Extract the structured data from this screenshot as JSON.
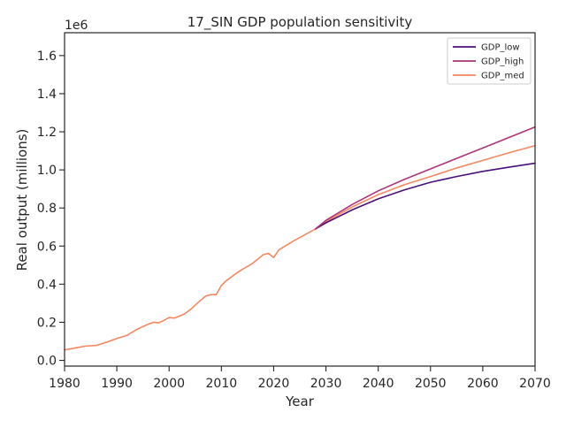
{
  "chart_data": {
    "type": "line",
    "title": "17_SIN GDP population sensitivity",
    "xlabel": "Year",
    "ylabel": "Real output (millions)",
    "y_offset_label": "1e6",
    "xlim": [
      1980,
      2070
    ],
    "ylim": [
      -30000,
      1720000
    ],
    "xticks": [
      1980,
      1990,
      2000,
      2010,
      2020,
      2030,
      2040,
      2050,
      2060,
      2070
    ],
    "yticks": [
      0,
      200000,
      400000,
      600000,
      800000,
      1000000,
      1200000,
      1400000,
      1600000
    ],
    "ytick_labels": [
      "0.0",
      "0.2",
      "0.4",
      "0.6",
      "0.8",
      "1.0",
      "1.2",
      "1.4",
      "1.6"
    ],
    "grid": false,
    "legend_position": "top-right",
    "series": [
      {
        "name": "GDP_low",
        "color": "#4a1179",
        "x": [
          2028,
          2030,
          2035,
          2040,
          2045,
          2050,
          2055,
          2060,
          2065,
          2070
        ],
        "y": [
          690000,
          722000,
          790000,
          848000,
          895000,
          935000,
          965000,
          992000,
          1014000,
          1035000
        ]
      },
      {
        "name": "GDP_high",
        "color": "#ad347c",
        "x": [
          2028,
          2030,
          2035,
          2040,
          2045,
          2050,
          2055,
          2060,
          2065,
          2070
        ],
        "y": [
          690000,
          735000,
          818000,
          890000,
          950000,
          1005000,
          1060000,
          1115000,
          1170000,
          1225000
        ]
      },
      {
        "name": "GDP_med",
        "color": "#f58860",
        "x": [
          1980,
          1982,
          1984,
          1986,
          1988,
          1990,
          1992,
          1994,
          1996,
          1997,
          1998,
          1999,
          2000,
          2001,
          2002,
          2003,
          2004,
          2005,
          2006,
          2007,
          2008,
          2009,
          2010,
          2011,
          2012,
          2013,
          2014,
          2015,
          2016,
          2017,
          2018,
          2019,
          2020,
          2021,
          2022,
          2024,
          2026,
          2028,
          2030,
          2035,
          2040,
          2045,
          2050,
          2055,
          2060,
          2065,
          2070
        ],
        "y": [
          55000,
          65000,
          75000,
          78000,
          95000,
          115000,
          132000,
          165000,
          190000,
          200000,
          197000,
          210000,
          225000,
          222000,
          233000,
          245000,
          265000,
          290000,
          315000,
          338000,
          345000,
          345000,
          393000,
          420000,
          440000,
          460000,
          478000,
          493000,
          510000,
          532000,
          555000,
          562000,
          540000,
          580000,
          597000,
          630000,
          660000,
          690000,
          728000,
          805000,
          870000,
          922000,
          965000,
          1010000,
          1050000,
          1090000,
          1127000
        ]
      }
    ]
  }
}
